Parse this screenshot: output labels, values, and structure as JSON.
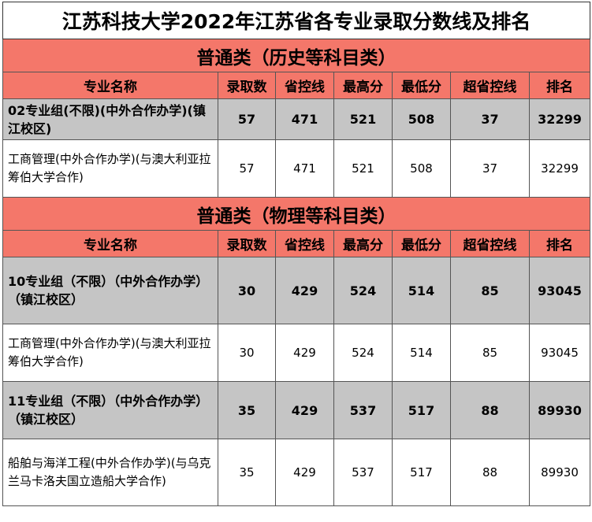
{
  "title": "江苏科技大学2022年江苏省各专业录取分数线及排名",
  "headers": [
    "专业名称",
    "录取数",
    "省控线",
    "最高分",
    "最低分",
    "超省控线",
    "排名"
  ],
  "sections": [
    {
      "title": "普通类（历史等科目类）",
      "rows": [
        {
          "kind": "group",
          "name": "02专业组(不限)(中外合作办学)(镇江校区)",
          "admitted": "57",
          "control_line": "471",
          "max_score": "521",
          "min_score": "508",
          "over_control": "37",
          "rank": "32299"
        },
        {
          "kind": "major",
          "name": "工商管理(中外合作办学)(与澳大利亚拉筹伯大学合作)",
          "admitted": "57",
          "control_line": "471",
          "max_score": "521",
          "min_score": "508",
          "over_control": "37",
          "rank": "32299"
        }
      ]
    },
    {
      "title": "普通类（物理等科目类）",
      "rows": [
        {
          "kind": "group",
          "name": "10专业组（不限）（中外合作办学）（镇江校区）",
          "admitted": "30",
          "control_line": "429",
          "max_score": "524",
          "min_score": "514",
          "over_control": "85",
          "rank": "93045"
        },
        {
          "kind": "major",
          "name": "工商管理(中外合作办学)(与澳大利亚拉筹伯大学合作)",
          "admitted": "30",
          "control_line": "429",
          "max_score": "524",
          "min_score": "514",
          "over_control": "85",
          "rank": "93045"
        },
        {
          "kind": "group",
          "name": "11专业组（不限）（中外合作办学）（镇江校区）",
          "admitted": "35",
          "control_line": "429",
          "max_score": "537",
          "min_score": "517",
          "over_control": "88",
          "rank": "89930"
        },
        {
          "kind": "major",
          "name": "船舶与海洋工程(中外合作办学)(与乌克兰马卡洛夫国立造船大学合作)",
          "admitted": "35",
          "control_line": "429",
          "max_score": "537",
          "min_score": "517",
          "over_control": "88",
          "rank": "89930"
        }
      ]
    }
  ]
}
